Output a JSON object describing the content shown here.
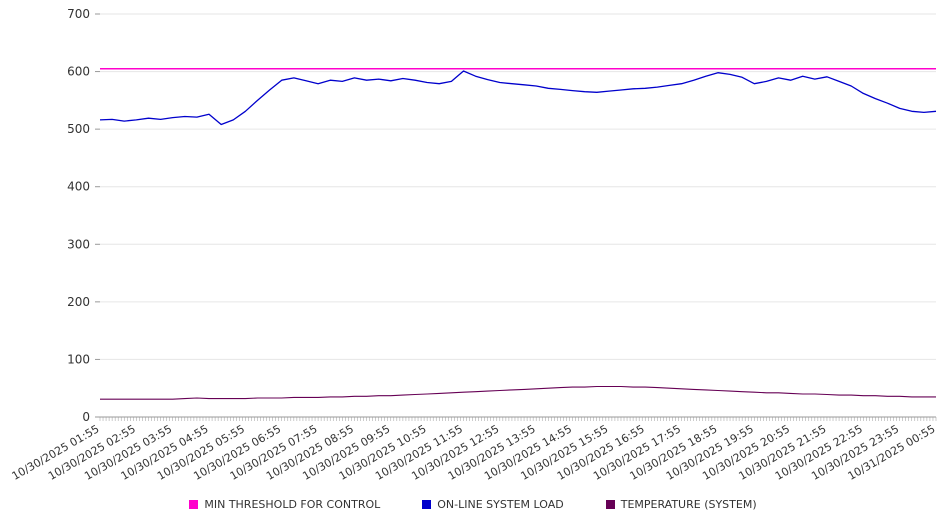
{
  "chart_data": {
    "type": "line",
    "title": "",
    "xlabel": "",
    "ylabel": "",
    "ylim": [
      0,
      700
    ],
    "yticks": [
      0,
      100,
      200,
      300,
      400,
      500,
      600,
      700
    ],
    "grid": true,
    "legend_position": "bottom",
    "x_tick_density": 276,
    "x_labels": [
      "10/30/2025 01:55",
      "10/30/2025 02:55",
      "10/30/2025 03:55",
      "10/30/2025 04:55",
      "10/30/2025 05:55",
      "10/30/2025 06:55",
      "10/30/2025 07:55",
      "10/30/2025 08:55",
      "10/30/2025 09:55",
      "10/30/2025 10:55",
      "10/30/2025 11:55",
      "10/30/2025 12:55",
      "10/30/2025 13:55",
      "10/30/2025 14:55",
      "10/30/2025 15:55",
      "10/30/2025 16:55",
      "10/30/2025 17:55",
      "10/30/2025 18:55",
      "10/30/2025 19:55",
      "10/30/2025 20:55",
      "10/30/2025 21:55",
      "10/30/2025 22:55",
      "10/30/2025 23:55",
      "10/31/2025 00:55"
    ],
    "series": [
      {
        "name": "MIN THRESHOLD FOR CONTROL",
        "color": "#ff00cc",
        "width": 1.5,
        "values": [
          605,
          605
        ]
      },
      {
        "name": "ON-LINE SYSTEM LOAD",
        "color": "#0000cc",
        "width": 1.3,
        "values": [
          516,
          517,
          514,
          516,
          519,
          517,
          520,
          522,
          521,
          526,
          508,
          516,
          531,
          550,
          568,
          585,
          589,
          584,
          579,
          585,
          583,
          589,
          585,
          587,
          584,
          588,
          585,
          581,
          579,
          583,
          601,
          592,
          586,
          581,
          579,
          577,
          575,
          571,
          569,
          567,
          565,
          564,
          566,
          568,
          570,
          571,
          573,
          576,
          579,
          585,
          592,
          598,
          595,
          590,
          579,
          583,
          589,
          585,
          592,
          587,
          591,
          583,
          575,
          562,
          553,
          545,
          536,
          531,
          529,
          531
        ]
      },
      {
        "name": "TEMPERATURE (SYSTEM)",
        "color": "#660055",
        "width": 1.1,
        "values": [
          31,
          31,
          31,
          31,
          31,
          31,
          31,
          32,
          33,
          32,
          32,
          32,
          32,
          33,
          33,
          33,
          34,
          34,
          34,
          35,
          35,
          36,
          36,
          37,
          37,
          38,
          39,
          40,
          41,
          42,
          43,
          44,
          45,
          46,
          47,
          48,
          49,
          50,
          51,
          52,
          52,
          53,
          53,
          53,
          52,
          52,
          51,
          50,
          49,
          48,
          47,
          46,
          45,
          44,
          43,
          42,
          42,
          41,
          40,
          40,
          39,
          38,
          38,
          37,
          37,
          36,
          36,
          35,
          35,
          35
        ]
      }
    ]
  }
}
